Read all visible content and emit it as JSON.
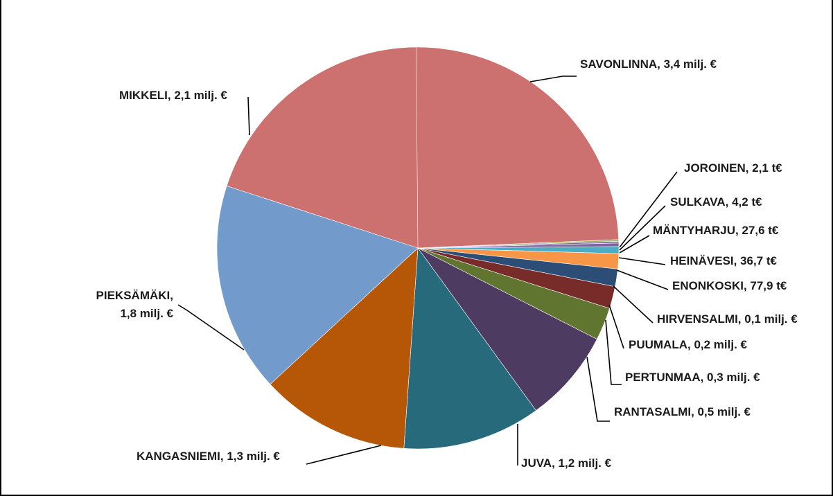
{
  "chart_data": {
    "type": "pie",
    "title": "",
    "slices": [
      {
        "name": "SAVONLINNA",
        "value": 3.4,
        "label_lines": [
          "SAVONLINNA, 3,4 milj. €"
        ],
        "color": "#CC7170"
      },
      {
        "name": "JOROINEN",
        "value": 0.0021,
        "label_lines": [
          "JOROINEN, 2,1 t€"
        ],
        "color": "#98B954"
      },
      {
        "name": "SULKAVA",
        "value": 0.0042,
        "label_lines": [
          "SULKAVA, 4,2 t€"
        ],
        "color": "#7E6A9E"
      },
      {
        "name": "MÄNTYHARJU",
        "value": 0.0276,
        "label_lines": [
          "MÄNTYHARJU, 27,6 t€"
        ],
        "color": "#8064A2"
      },
      {
        "name": "HEINÄVESI",
        "value": 0.0367,
        "label_lines": [
          "HEINÄVESI, 36,7 t€"
        ],
        "color": "#4BACC6"
      },
      {
        "name": "ENONKOSKI",
        "value": 0.0779,
        "label_lines": [
          "ENONKOSKI, 77,9 t€"
        ],
        "color": "#F79646"
      },
      {
        "name": "HIRVENSALMI",
        "value": 0.1,
        "label_lines": [
          "HIRVENSALMI, 0,1 milj. €"
        ],
        "color": "#2C4D75"
      },
      {
        "name": "PUUMALA",
        "value": 0.2,
        "label_lines": [
          "PUUMALA, 0,2 milj. €"
        ],
        "color": "#772C2A"
      },
      {
        "name": "PERTUNMAA",
        "value": 0.3,
        "label_lines": [
          "PERTUNMAA, 0,3 milj. €"
        ],
        "color": "#5F7530"
      },
      {
        "name": "RANTASALMI",
        "value": 0.5,
        "label_lines": [
          "RANTASALMI, 0,5 milj. €"
        ],
        "color": "#4D3B62"
      },
      {
        "name": "JUVA",
        "value": 1.2,
        "label_lines": [
          "JUVA, 1,2 milj. €"
        ],
        "color": "#276A7C"
      },
      {
        "name": "KANGASNIEMI",
        "value": 1.3,
        "label_lines": [
          "KANGASNIEMI, 1,3 milj. €"
        ],
        "color": "#B65708"
      },
      {
        "name": "PIEKSÄMÄKI",
        "value": 1.8,
        "label_lines": [
          "PIEKSÄMÄKI,",
          "1,8 milj. €"
        ],
        "color": "#729ACA"
      },
      {
        "name": "MIKKELI",
        "value": 2.1,
        "label_lines": [
          "MIKKELI, 2,1 milj. €"
        ],
        "color": "#CC7170"
      }
    ]
  }
}
